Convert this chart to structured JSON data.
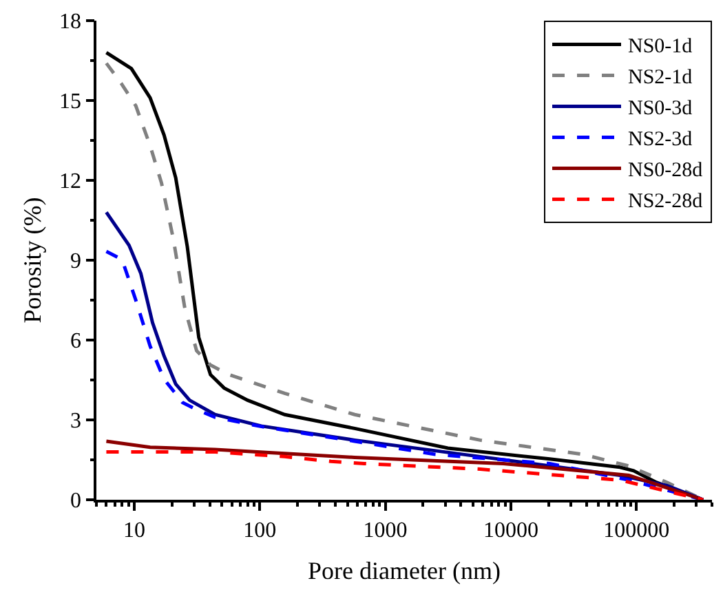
{
  "chart_data": {
    "type": "line",
    "xlabel": "Pore diameter (nm)",
    "ylabel": "Porosity (%)",
    "log": "x",
    "xlim": [
      5,
      400000
    ],
    "xticks": [
      10,
      100,
      1000,
      10000,
      100000
    ],
    "ylim": [
      0,
      18
    ],
    "yticks": [
      0,
      3,
      6,
      9,
      12,
      15,
      18
    ],
    "legend": "top right",
    "marker": "none",
    "series": [
      {
        "name": "NS0-1d",
        "color": "#000000",
        "line_style": "solid",
        "x": [
          6,
          9.5,
          13.4,
          17.3,
          21.4,
          26.5,
          32.7,
          40.5,
          52,
          80,
          158,
          570,
          3150,
          20400,
          74000,
          95000,
          145000,
          340000
        ],
        "values": [
          16.8,
          16.2,
          15.1,
          13.7,
          12.1,
          9.5,
          6.1,
          4.7,
          4.2,
          3.74,
          3.2,
          2.68,
          1.94,
          1.53,
          1.22,
          1.09,
          0.65,
          0
        ]
      },
      {
        "name": "NS2-1d",
        "color": "#808080",
        "line_style": "dashed",
        "x": [
          6,
          8,
          10.3,
          13.4,
          16.5,
          20.5,
          25.3,
          31.4,
          40.5,
          57,
          158,
          570,
          5700,
          37000,
          87000,
          175000,
          340000
        ],
        "values": [
          16.4,
          15.6,
          14.8,
          13.3,
          11.9,
          9.8,
          7.2,
          5.6,
          5.06,
          4.7,
          4.0,
          3.2,
          2.24,
          1.71,
          1.27,
          0.65,
          0
        ]
      },
      {
        "name": "NS0-3d",
        "color": "#00008b",
        "line_style": "solid",
        "x": [
          6,
          9.1,
          11.3,
          14,
          17.3,
          21.4,
          27.6,
          44,
          103,
          570,
          5700,
          74000,
          175000,
          340000
        ],
        "values": [
          10.8,
          9.56,
          8.5,
          6.65,
          5.4,
          4.35,
          3.74,
          3.2,
          2.77,
          2.24,
          1.62,
          0.92,
          0.53,
          0
        ]
      },
      {
        "name": "NS2-3d",
        "color": "#0000ff",
        "line_style": "dashed",
        "x": [
          6,
          8,
          10.3,
          13.4,
          17.3,
          24.3,
          31.4,
          44,
          103,
          570,
          2450,
          20400,
          87000,
          340000
        ],
        "values": [
          9.33,
          9.03,
          7.5,
          5.77,
          4.53,
          3.65,
          3.39,
          3.1,
          2.75,
          2.2,
          1.71,
          1.36,
          0.74,
          0
        ]
      },
      {
        "name": "NS0-28d",
        "color": "#8b0000",
        "line_style": "solid",
        "x": [
          6,
          13.4,
          44,
          570,
          8700,
          87000,
          340000
        ],
        "values": [
          2.2,
          1.97,
          1.89,
          1.59,
          1.36,
          0.92,
          0
        ]
      },
      {
        "name": "NS2-28d",
        "color": "#ff0000",
        "line_style": "dashed",
        "x": [
          6,
          44,
          158,
          370,
          680,
          5700,
          74000,
          340000
        ],
        "values": [
          1.8,
          1.8,
          1.62,
          1.44,
          1.36,
          1.15,
          0.74,
          0
        ]
      }
    ]
  }
}
